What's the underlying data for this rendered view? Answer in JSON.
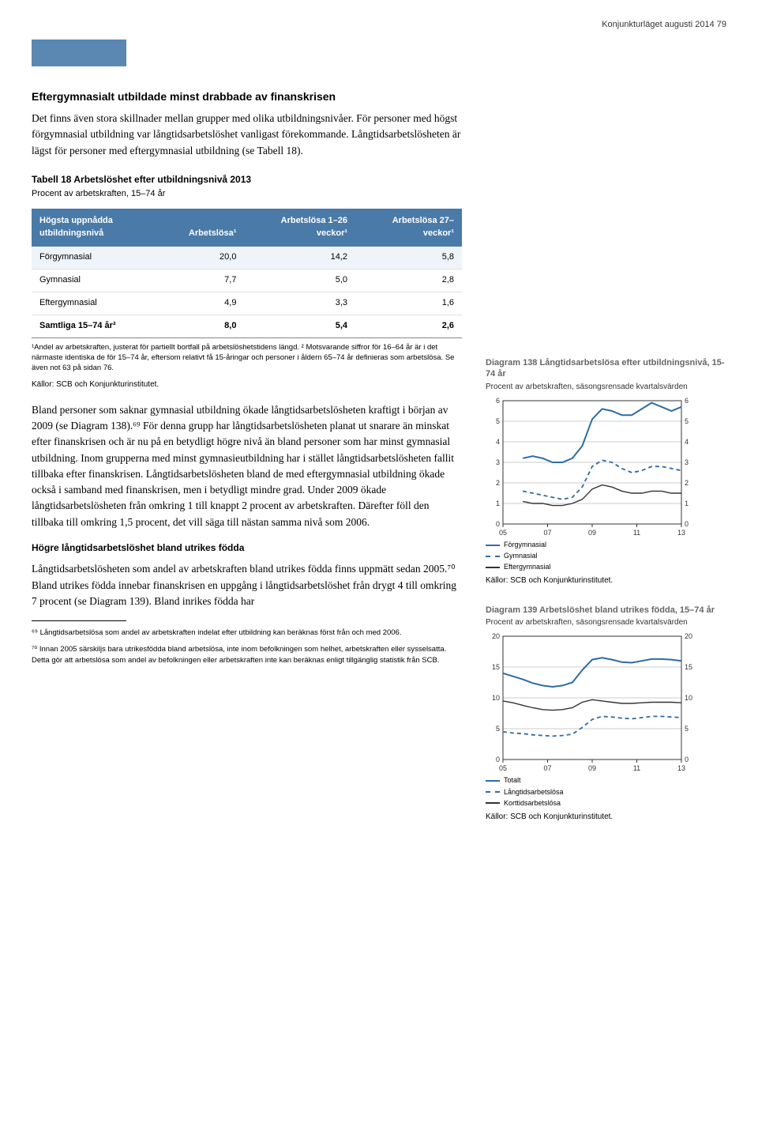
{
  "header": {
    "running_head": "Konjunkturläget augusti 2014   79"
  },
  "section": {
    "title": "Eftergymnasialt utbildade minst drabbade av finanskrisen",
    "para1": "Det finns även stora skillnader mellan grupper med olika utbildningsnivåer. För personer med högst förgymnasial utbildning var långtidsarbetslöshet vanligast förekommande. Långtidsarbetslösheten är lägst för personer med eftergymnasial utbildning (se Tabell 18)."
  },
  "table18": {
    "title": "Tabell 18 Arbetslöshet efter utbildningsnivå 2013",
    "subtitle": "Procent av arbetskraften, 15–74 år",
    "head_col0": "Högsta uppnådda utbildningsnivå",
    "head_col1": "Arbetslösa¹",
    "head_col2": "Arbetslösa 1–26 veckor¹",
    "head_col3": "Arbetslösa 27– veckor¹",
    "rows": [
      {
        "label": "Förgymnasial",
        "c1": "20,0",
        "c2": "14,2",
        "c3": "5,8"
      },
      {
        "label": "Gymnasial",
        "c1": "7,7",
        "c2": "5,0",
        "c3": "2,8"
      },
      {
        "label": "Eftergymnasial",
        "c1": "4,9",
        "c2": "3,3",
        "c3": "1,6"
      }
    ],
    "total": {
      "label": "Samtliga 15–74 år²",
      "c1": "8,0",
      "c2": "5,4",
      "c3": "2,6"
    },
    "footnote": "¹Andel av arbetskraften, justerat för partiellt bortfall på arbetslöshetstidens längd. ² Motsvarande siffror för 16–64 år är i det närmaste identiska de för 15–74 år, eftersom relativt få 15-åringar och personer i åldern 65–74 år definieras som arbetslösa. Se även not 63 på sidan 76.",
    "source": "Källor: SCB och Konjunkturinstitutet."
  },
  "para2": "Bland personer som saknar gymnasial utbildning ökade långtidsarbetslösheten kraftigt i början av 2009 (se Diagram 138).⁶⁹ För denna grupp har långtidsarbetslösheten planat ut snarare än minskat efter finanskrisen och är nu på en betydligt högre nivå än bland personer som har minst gymnasial utbildning. Inom grupperna med minst gymnasieutbildning har i stället långtidsarbetslösheten fallit tillbaka efter finanskrisen. Långtidsarbetslösheten bland de med eftergymnasial utbildning ökade också i samband med finanskrisen, men i betydligt mindre grad. Under 2009 ökade långtidsarbetslösheten från omkring 1 till knappt 2 procent av arbetskraften. Därefter föll den tillbaka till omkring 1,5 procent, det vill säga till nästan samma nivå som 2006.",
  "subhead2": "Högre långtidsarbetslöshet bland utrikes födda",
  "para3": "Långtidsarbetslösheten som andel av arbetskraften bland utrikes födda finns uppmätt sedan 2005.⁷⁰ Bland utrikes födda innebar finanskrisen en uppgång i långtidsarbetslöshet från drygt 4 till omkring 7 procent (se Diagram 139). Bland inrikes födda har",
  "endnotes": {
    "n69": "⁶⁹ Långtidsarbetslösa som andel av arbetskraften indelat efter utbildning kan beräknas först från och med 2006.",
    "n70": "⁷⁰ Innan 2005 särskiljs bara utrikesfödda bland arbetslösa, inte inom befolkningen som helhet, arbetskraften eller sysselsatta. Detta gör att arbetslösa som andel av befolkningen eller arbetskraften inte kan beräknas enligt tillgänglig statistik från SCB."
  },
  "chart138": {
    "title": "Diagram 138 Långtidsarbetslösa efter utbildningsnivå, 15-74 år",
    "subtitle": "Procent av arbetskraften, säsongsrensade kvartalsvärden",
    "type": "line",
    "xlim": [
      2005,
      2014
    ],
    "ylim": [
      0,
      6
    ],
    "ytick_step": 1,
    "xticks": [
      "05",
      "07",
      "09",
      "11",
      "13"
    ],
    "grid_color": "#cccccc",
    "background_color": "#ffffff",
    "axis_fontsize": 9,
    "series": [
      {
        "name": "Förgymnasial",
        "color": "#2e6ca4",
        "dash": "none",
        "width": 2,
        "x": [
          2006,
          2006.5,
          2007,
          2007.5,
          2008,
          2008.5,
          2009,
          2009.5,
          2010,
          2010.5,
          2011,
          2011.5,
          2012,
          2012.5,
          2013,
          2013.5,
          2014
        ],
        "y": [
          3.2,
          3.3,
          3.2,
          3.0,
          3.0,
          3.2,
          3.8,
          5.1,
          5.6,
          5.5,
          5.3,
          5.3,
          5.6,
          5.9,
          5.7,
          5.5,
          5.7
        ]
      },
      {
        "name": "Gymnasial",
        "color": "#2e6ca4",
        "dash": "5,4",
        "width": 1.8,
        "x": [
          2006,
          2006.5,
          2007,
          2007.5,
          2008,
          2008.5,
          2009,
          2009.5,
          2010,
          2010.5,
          2011,
          2011.5,
          2012,
          2012.5,
          2013,
          2013.5,
          2014
        ],
        "y": [
          1.6,
          1.5,
          1.4,
          1.3,
          1.2,
          1.3,
          1.8,
          2.8,
          3.1,
          3.0,
          2.7,
          2.5,
          2.6,
          2.8,
          2.8,
          2.7,
          2.6
        ]
      },
      {
        "name": "Eftergymnasial",
        "color": "#333333",
        "dash": "none",
        "width": 1.4,
        "x": [
          2006,
          2006.5,
          2007,
          2007.5,
          2008,
          2008.5,
          2009,
          2009.5,
          2010,
          2010.5,
          2011,
          2011.5,
          2012,
          2012.5,
          2013,
          2013.5,
          2014
        ],
        "y": [
          1.1,
          1.0,
          1.0,
          0.9,
          0.9,
          1.0,
          1.2,
          1.7,
          1.9,
          1.8,
          1.6,
          1.5,
          1.5,
          1.6,
          1.6,
          1.5,
          1.5
        ]
      }
    ],
    "source": "Källor: SCB och Konjunkturinstitutet."
  },
  "chart139": {
    "title": "Diagram 139 Arbetslöshet bland utrikes födda, 15–74 år",
    "subtitle": "Procent av arbetskraften, säsongsrensade kvartalsvärden",
    "type": "line",
    "xlim": [
      2005,
      2014
    ],
    "ylim": [
      0,
      20
    ],
    "ytick_step": 5,
    "xticks": [
      "05",
      "07",
      "09",
      "11",
      "13"
    ],
    "grid_color": "#cccccc",
    "background_color": "#ffffff",
    "axis_fontsize": 9,
    "series": [
      {
        "name": "Totalt",
        "color": "#2e6ca4",
        "dash": "none",
        "width": 2,
        "x": [
          2005,
          2005.5,
          2006,
          2006.5,
          2007,
          2007.5,
          2008,
          2008.5,
          2009,
          2009.5,
          2010,
          2010.5,
          2011,
          2011.5,
          2012,
          2012.5,
          2013,
          2013.5,
          2014
        ],
        "y": [
          14.0,
          13.5,
          13.0,
          12.4,
          12.0,
          11.8,
          12.0,
          12.5,
          14.5,
          16.2,
          16.5,
          16.2,
          15.8,
          15.7,
          16.0,
          16.3,
          16.3,
          16.2,
          16.0
        ]
      },
      {
        "name": "Långtidsarbetslösa",
        "color": "#2e6ca4",
        "dash": "5,4",
        "width": 1.8,
        "x": [
          2005,
          2005.5,
          2006,
          2006.5,
          2007,
          2007.5,
          2008,
          2008.5,
          2009,
          2009.5,
          2010,
          2010.5,
          2011,
          2011.5,
          2012,
          2012.5,
          2013,
          2013.5,
          2014
        ],
        "y": [
          4.5,
          4.3,
          4.2,
          4.0,
          3.9,
          3.8,
          3.9,
          4.1,
          5.2,
          6.5,
          7.0,
          6.9,
          6.7,
          6.6,
          6.8,
          7.0,
          7.0,
          6.9,
          6.8
        ]
      },
      {
        "name": "Korttidsarbetslösa",
        "color": "#333333",
        "dash": "none",
        "width": 1.4,
        "x": [
          2005,
          2005.5,
          2006,
          2006.5,
          2007,
          2007.5,
          2008,
          2008.5,
          2009,
          2009.5,
          2010,
          2010.5,
          2011,
          2011.5,
          2012,
          2012.5,
          2013,
          2013.5,
          2014
        ],
        "y": [
          9.5,
          9.2,
          8.8,
          8.4,
          8.1,
          8.0,
          8.1,
          8.4,
          9.3,
          9.7,
          9.5,
          9.3,
          9.1,
          9.1,
          9.2,
          9.3,
          9.3,
          9.3,
          9.2
        ]
      }
    ],
    "source": "Källor: SCB och Konjunkturinstitutet."
  }
}
